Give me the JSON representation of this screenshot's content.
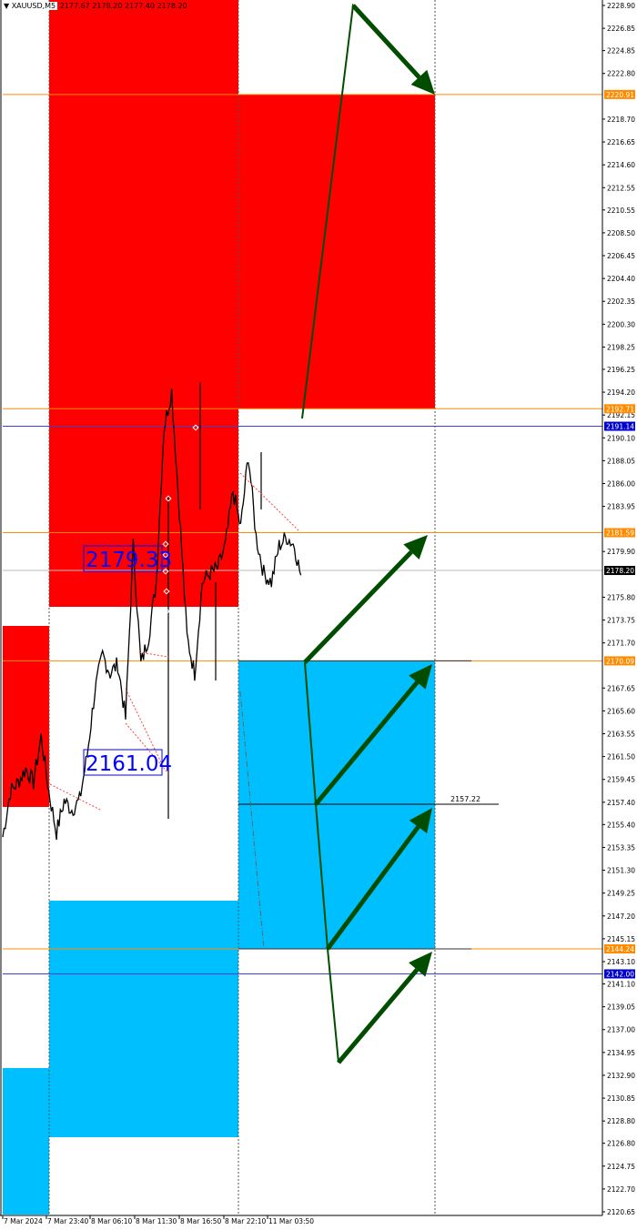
{
  "header": {
    "symbol": "XAUUSD,M5",
    "ohlc": "2177.67 2178.20 2177.40 2178.20",
    "dropdown_icon": "triangle-down-icon"
  },
  "colors": {
    "supply_zone": "#FF0000",
    "demand_zone": "#00BFFF",
    "level_orange": "#FF8C00",
    "level_blue": "#0000CC",
    "arrow_green": "#004D00",
    "label_blue": "#0000FF"
  },
  "chart_data": {
    "type": "line",
    "title": "",
    "ylim": [
      2120.65,
      2228.9
    ],
    "y_ticks": [
      "2228.90",
      "2226.85",
      "2224.85",
      "2222.80",
      "2218.70",
      "2216.65",
      "2214.60",
      "2212.55",
      "2210.55",
      "2208.50",
      "2206.45",
      "2204.40",
      "2202.35",
      "2200.30",
      "2198.25",
      "2196.25",
      "2194.20",
      "2192.15",
      "2190.10",
      "2188.05",
      "2186.00",
      "2183.95",
      "2179.90",
      "2175.80",
      "2173.75",
      "2171.70",
      "2167.65",
      "2165.60",
      "2163.55",
      "2161.50",
      "2159.45",
      "2157.40",
      "2155.40",
      "2153.35",
      "2151.30",
      "2149.25",
      "2147.20",
      "2145.15",
      "2143.10",
      "2141.10",
      "2139.05",
      "2137.00",
      "2134.95",
      "2132.90",
      "2130.85",
      "2128.80",
      "2126.80",
      "2124.75",
      "2122.70",
      "2120.65"
    ],
    "x_ticks": [
      "7 Mar 2024",
      "7 Mar 23:40",
      "8 Mar 06:10",
      "8 Mar 11:30",
      "8 Mar 16:50",
      "8 Mar 22:10",
      "11 Mar 03:50"
    ],
    "price_path": [
      2154.29,
      2158.37,
      2159.19,
      2160.41,
      2159.19,
      2163.27,
      2158.37,
      2154.7,
      2157.55,
      2156.74,
      2157.55,
      2161.63,
      2167.35,
      2170.61,
      2168.98,
      2169.8,
      2164.9,
      2180.41,
      2169.8,
      2172.24,
      2177.14,
      2191.02,
      2194.29,
      2183.67,
      2172.24,
      2168.98,
      2177.14,
      2177.96,
      2178.37,
      2180.41,
      2185.31,
      2182.04,
      2188.57,
      2181.23,
      2177.96,
      2177.14,
      2180.41,
      2181.23,
      2180.41,
      2177.14
    ],
    "levels": [
      {
        "price": 2220.91,
        "label": "2220.91",
        "kind": "orange"
      },
      {
        "price": 2192.71,
        "label": "2192.71",
        "kind": "orange"
      },
      {
        "price": 2191.14,
        "label": "2191.14",
        "kind": "blue"
      },
      {
        "price": 2181.59,
        "label": "2181.59",
        "kind": "orange"
      },
      {
        "price": 2178.2,
        "label": "2178.20",
        "kind": "current"
      },
      {
        "price": 2170.09,
        "label": "2170.09",
        "kind": "orange"
      },
      {
        "price": 2144.24,
        "label": "2144.24",
        "kind": "orange"
      },
      {
        "price": 2142.0,
        "label": "2142.00",
        "kind": "blue"
      }
    ],
    "target_line": {
      "price": 2157.22,
      "label": "2157.22"
    },
    "annotations": [
      "2179.33",
      "2161.04"
    ]
  }
}
